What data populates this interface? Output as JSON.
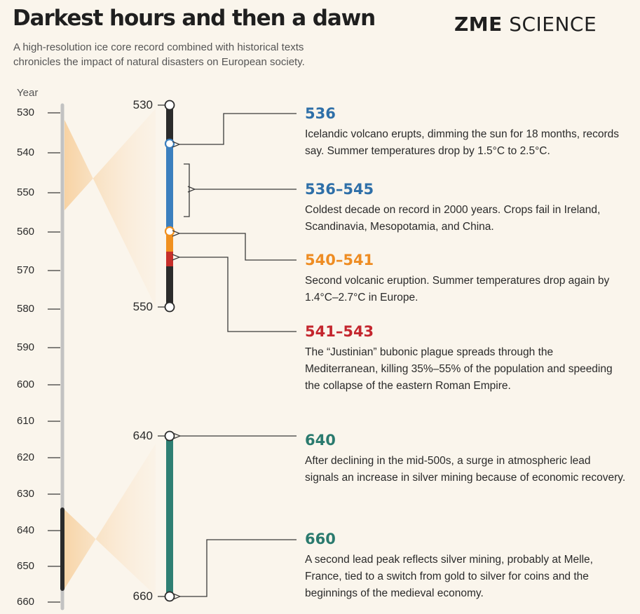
{
  "title": "Darkest hours and then a dawn",
  "logo": {
    "bold": "ZME",
    "light": "SCIENCE"
  },
  "subtitle": "A high-resolution ice core record combined with historical texts chronicles the impact of natural disasters on European society.",
  "axis": {
    "label": "Year",
    "ticks": [
      "530",
      "540",
      "550",
      "560",
      "570",
      "580",
      "590",
      "600",
      "610",
      "620",
      "630",
      "640",
      "650",
      "660"
    ]
  },
  "cores": [
    {
      "top_label": "530",
      "bottom_label": "550"
    },
    {
      "top_label": "640",
      "bottom_label": "660"
    }
  ],
  "events": [
    {
      "year": "536",
      "color": "#2e6fa8",
      "text": "Icelandic volcano erupts, dimming the sun for 18 months, records say. Summer temperatures drop by 1.5°C to 2.5°C."
    },
    {
      "year": "536–545",
      "color": "#2e6fa8",
      "text": "Coldest decade on record in 2000 years. Crops fail in Ireland, Scandinavia, Mesopotamia, and China."
    },
    {
      "year": "540–541",
      "color": "#ee8c22",
      "text": "Second volcanic eruption. Summer temperatures drop again by 1.4°C–2.7°C in Europe."
    },
    {
      "year": "541–543",
      "color": "#c4262e",
      "text": "The “Justinian” bubonic plague spreads through the Mediterranean, killing 35%–55% of the population and speeding the collapse of the eastern Roman Empire."
    },
    {
      "year": "640",
      "color": "#2a7a6e",
      "text": "After declining in the mid-500s, a surge in atmospheric lead signals an increase in silver mining because of economic recovery."
    },
    {
      "year": "660",
      "color": "#2a7a6e",
      "text": "A second lead peak reflects silver mining, probably at Melle, France, tied to a switch from gold to silver for coins and the beginnings of the medieval economy."
    }
  ],
  "colors": {
    "blue": "#3b7fbe",
    "orange": "#f0901f",
    "red": "#c62f2a",
    "teal": "#2e7f73",
    "core_dark": "#2b2b2b",
    "timeline_gray": "#c2c2c2",
    "zoom_fill": "#fbe3c5"
  }
}
